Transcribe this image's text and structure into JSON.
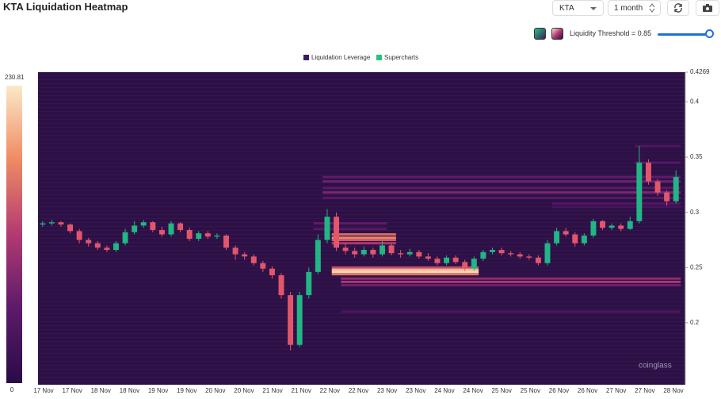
{
  "header": {
    "title": "KTA Liquidation Heatmap",
    "symbol": "KTA",
    "period": "1 month",
    "threshold_label": "Liquidity Threshold = 0.85"
  },
  "chart_data": {
    "type": "candlestick-heatmap",
    "legend": [
      "Liquidation Leverage",
      "Supercharts"
    ],
    "legend_colors": [
      "#3a1e5c",
      "#26c281"
    ],
    "watermark": "coinglass",
    "categories": [
      "17 Nov",
      "17 Nov",
      "18 Nov",
      "18 Nov",
      "19 Nov",
      "19 Nov",
      "20 Nov",
      "20 Nov",
      "21 Nov",
      "21 Nov",
      "22 Nov",
      "22 Nov",
      "23 Nov",
      "23 Nov",
      "24 Nov",
      "24 Nov",
      "25 Nov",
      "25 Nov",
      "26 Nov",
      "26 Nov",
      "27 Nov",
      "27 Nov",
      "28 Nov"
    ],
    "ylim": [
      0.1439,
      0.4269
    ],
    "yticks": [
      0.4269,
      0.4,
      0.35,
      0.3,
      0.25,
      0.2
    ],
    "colorbar_range": [
      0,
      230.81
    ],
    "colorscale": [
      "#2a0b47",
      "#5c1a6a",
      "#b23a72",
      "#ef8a62",
      "#fbe9c8"
    ],
    "background": "#2d1046",
    "up_color": "#22b585",
    "down_color": "#e2566b",
    "candles": {
      "open": [
        0.289,
        0.29,
        0.291,
        0.289,
        0.283,
        0.275,
        0.272,
        0.268,
        0.266,
        0.272,
        0.282,
        0.288,
        0.291,
        0.284,
        0.28,
        0.29,
        0.284,
        0.276,
        0.281,
        0.278,
        0.279,
        0.268,
        0.262,
        0.26,
        0.254,
        0.249,
        0.243,
        0.225,
        0.18,
        0.225,
        0.246,
        0.275,
        0.296,
        0.268,
        0.265,
        0.262,
        0.266,
        0.262,
        0.27,
        0.263,
        0.262,
        0.264,
        0.26,
        0.258,
        0.254,
        0.259,
        0.255,
        0.249,
        0.258,
        0.264,
        0.266,
        0.263,
        0.262,
        0.26,
        0.259,
        0.254,
        0.272,
        0.283,
        0.28,
        0.272,
        0.279,
        0.292,
        0.286,
        0.288,
        0.285,
        0.292,
        0.345,
        0.328,
        0.318,
        0.31
      ],
      "high": [
        0.292,
        0.293,
        0.292,
        0.29,
        0.285,
        0.277,
        0.274,
        0.27,
        0.274,
        0.285,
        0.292,
        0.293,
        0.292,
        0.287,
        0.292,
        0.291,
        0.286,
        0.283,
        0.283,
        0.281,
        0.28,
        0.27,
        0.264,
        0.262,
        0.256,
        0.251,
        0.245,
        0.228,
        0.228,
        0.25,
        0.28,
        0.303,
        0.3,
        0.272,
        0.268,
        0.269,
        0.268,
        0.274,
        0.272,
        0.266,
        0.267,
        0.266,
        0.263,
        0.26,
        0.261,
        0.261,
        0.257,
        0.26,
        0.266,
        0.268,
        0.268,
        0.265,
        0.264,
        0.262,
        0.261,
        0.275,
        0.286,
        0.286,
        0.282,
        0.281,
        0.294,
        0.293,
        0.29,
        0.29,
        0.296,
        0.36,
        0.348,
        0.33,
        0.32,
        0.338
      ],
      "low": [
        0.287,
        0.288,
        0.287,
        0.281,
        0.272,
        0.269,
        0.266,
        0.264,
        0.264,
        0.27,
        0.28,
        0.286,
        0.282,
        0.278,
        0.278,
        0.282,
        0.274,
        0.274,
        0.276,
        0.276,
        0.266,
        0.257,
        0.257,
        0.252,
        0.246,
        0.24,
        0.222,
        0.175,
        0.178,
        0.222,
        0.244,
        0.272,
        0.265,
        0.262,
        0.259,
        0.26,
        0.259,
        0.26,
        0.261,
        0.259,
        0.26,
        0.258,
        0.256,
        0.252,
        0.252,
        0.253,
        0.247,
        0.247,
        0.256,
        0.262,
        0.261,
        0.26,
        0.258,
        0.257,
        0.252,
        0.252,
        0.27,
        0.278,
        0.269,
        0.27,
        0.277,
        0.284,
        0.284,
        0.283,
        0.284,
        0.29,
        0.325,
        0.315,
        0.306,
        0.308
      ],
      "close": [
        0.29,
        0.291,
        0.289,
        0.283,
        0.275,
        0.272,
        0.268,
        0.266,
        0.272,
        0.282,
        0.288,
        0.291,
        0.284,
        0.28,
        0.29,
        0.284,
        0.276,
        0.281,
        0.278,
        0.279,
        0.268,
        0.262,
        0.26,
        0.254,
        0.249,
        0.243,
        0.225,
        0.18,
        0.225,
        0.246,
        0.275,
        0.296,
        0.268,
        0.265,
        0.262,
        0.266,
        0.262,
        0.27,
        0.263,
        0.262,
        0.264,
        0.26,
        0.258,
        0.254,
        0.259,
        0.255,
        0.249,
        0.258,
        0.264,
        0.266,
        0.263,
        0.262,
        0.26,
        0.259,
        0.254,
        0.272,
        0.283,
        0.28,
        0.272,
        0.279,
        0.292,
        0.286,
        0.288,
        0.285,
        0.292,
        0.345,
        0.328,
        0.318,
        0.31,
        0.332
      ]
    },
    "levels": {
      "price": [
        0.36,
        0.345,
        0.332,
        0.328,
        0.322,
        0.318,
        0.313,
        0.308,
        0.305,
        0.29,
        0.285,
        0.28,
        0.277,
        0.275,
        0.272,
        0.25,
        0.248,
        0.246,
        0.244,
        0.24,
        0.237,
        0.234,
        0.21
      ],
      "from": [
        65,
        65,
        31,
        31,
        31,
        31,
        31,
        56,
        56,
        30,
        30,
        32,
        32,
        32,
        32,
        32,
        32,
        32,
        32,
        33,
        33,
        33,
        33
      ],
      "to": [
        69,
        69,
        69,
        69,
        69,
        69,
        69,
        69,
        69,
        37,
        37,
        38,
        38,
        38,
        38,
        47,
        47,
        47,
        47,
        69,
        69,
        69,
        69
      ],
      "value": [
        40,
        50,
        60,
        70,
        55,
        80,
        50,
        45,
        35,
        60,
        50,
        150,
        170,
        140,
        110,
        130,
        200,
        220,
        160,
        90,
        110,
        70,
        40
      ]
    }
  }
}
